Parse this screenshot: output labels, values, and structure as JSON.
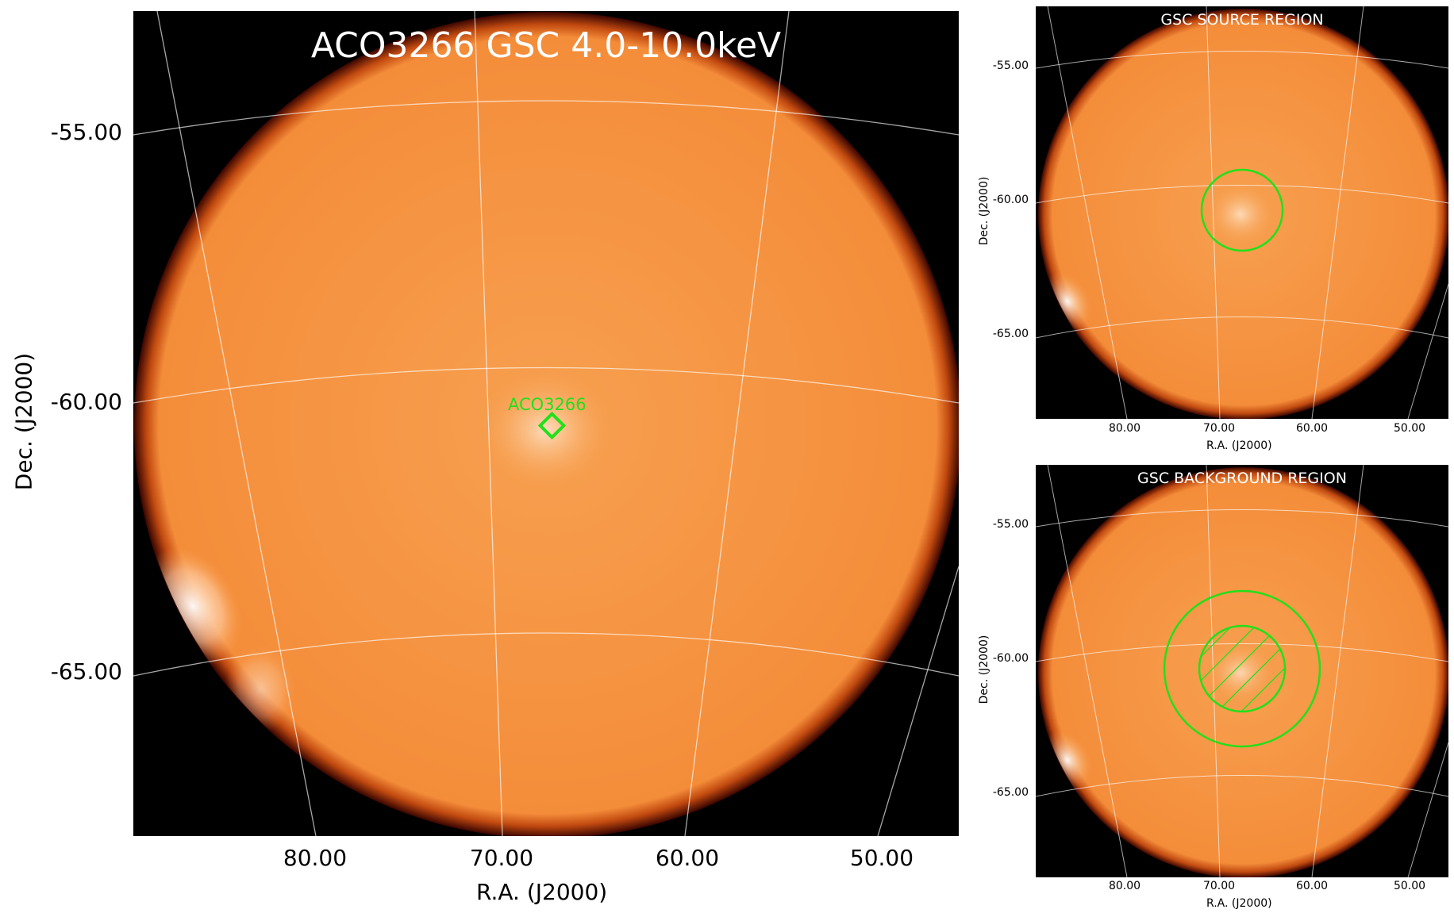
{
  "main": {
    "title": "ACO3266 GSC 4.0-10.0keV",
    "source_label": "ACO3266",
    "xlabel": "R.A. (J2000)",
    "ylabel": "Dec. (J2000)",
    "x_ticks": [
      "80.00",
      "70.00",
      "60.00",
      "50.00"
    ],
    "y_ticks": [
      "-55.00",
      "-60.00",
      "-65.00"
    ]
  },
  "source_panel": {
    "title": "GSC SOURCE REGION",
    "xlabel": "R.A. (J2000)",
    "ylabel": "Dec. (J2000)",
    "x_ticks": [
      "80.00",
      "70.00",
      "60.00",
      "50.00"
    ],
    "y_ticks": [
      "-55.00",
      "-60.00",
      "-65.00"
    ]
  },
  "background_panel": {
    "title": "GSC BACKGROUND REGION",
    "xlabel": "R.A. (J2000)",
    "ylabel": "Dec. (J2000)",
    "x_ticks": [
      "80.00",
      "70.00",
      "60.00",
      "50.00"
    ],
    "y_ticks": [
      "-55.00",
      "-60.00",
      "-65.00"
    ]
  },
  "colors": {
    "map_fill": "#f5943f",
    "map_edge": "#7a1a00",
    "region": "#22e01a",
    "grid": "#ffffff"
  }
}
